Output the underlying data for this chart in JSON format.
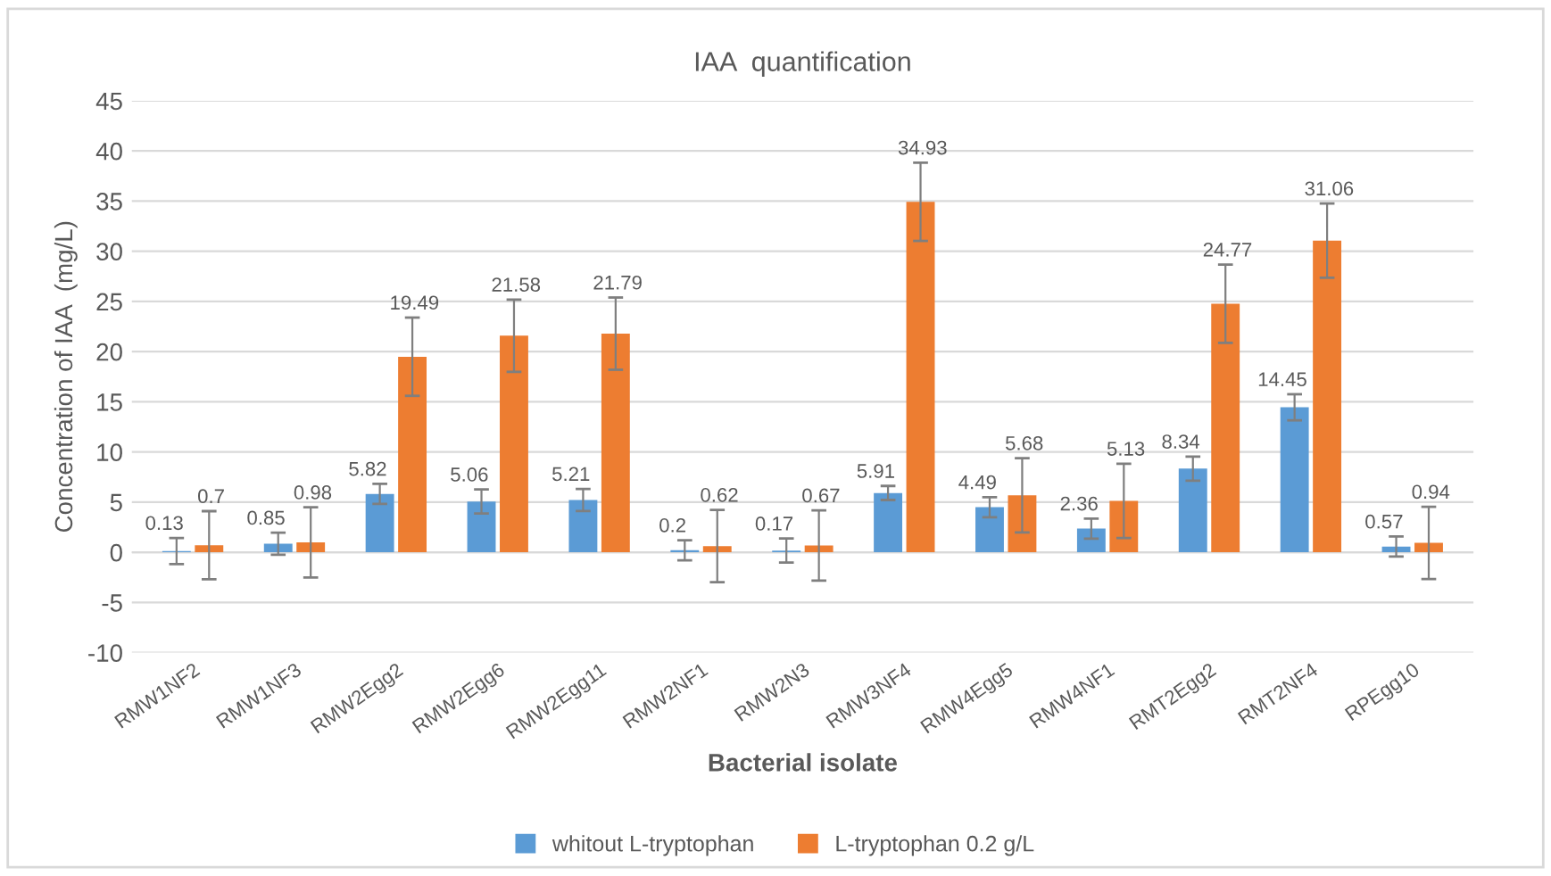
{
  "chart_data": {
    "type": "bar",
    "title": "IAA  quantification",
    "xlabel": "Bacterial isolate",
    "ylabel": "Concentration of IAA  (mg/L)",
    "categories": [
      "RMW1NF2",
      "RMW1NF3",
      "RMW2Egg2",
      "RMW2Egg6",
      "RMW2Egg11",
      "RMW2NF1",
      "RMW2N3",
      "RMW3NF4",
      "RMW4Egg5",
      "RMW4NF1",
      "RMT2Egg2",
      "RMT2NF4",
      "RPEgg10"
    ],
    "series": [
      {
        "name": "whitout L-tryptophan",
        "color": "#5b9bd5",
        "values": [
          0.13,
          0.85,
          5.82,
          5.06,
          5.21,
          0.2,
          0.17,
          5.91,
          4.49,
          2.36,
          8.34,
          14.45,
          0.57
        ],
        "errors": [
          1.3,
          1.1,
          1,
          1.2,
          1.1,
          1,
          1.2,
          0.7,
          1,
          1,
          1.2,
          1.3,
          1
        ]
      },
      {
        "name": "L-tryptophan 0.2 g/L",
        "color": "#ed7d31",
        "values": [
          0.7,
          0.98,
          19.49,
          21.58,
          21.79,
          0.62,
          0.67,
          34.93,
          5.68,
          5.13,
          24.77,
          31.06,
          0.94
        ],
        "errors": [
          3.4,
          3.5,
          3.9,
          3.6,
          3.6,
          3.6,
          3.5,
          3.9,
          3.7,
          3.7,
          3.9,
          3.7,
          3.6
        ]
      }
    ],
    "ylim": [
      -10,
      45
    ],
    "yticks": [
      -10,
      -5,
      0,
      5,
      10,
      15,
      20,
      25,
      30,
      35,
      40,
      45
    ],
    "grid": "y",
    "legend": "bottom",
    "data_labels": true
  }
}
